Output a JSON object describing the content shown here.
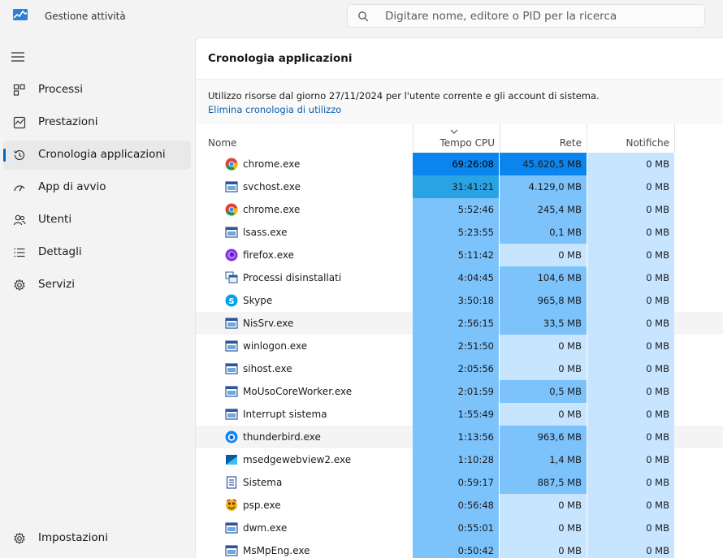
{
  "app": {
    "title": "Gestione attività"
  },
  "search": {
    "placeholder": "Digitare nome, editore o PID per la ricerca"
  },
  "nav": {
    "items": [
      {
        "label": "Processi",
        "icon": "processes-grid-icon"
      },
      {
        "label": "Prestazioni",
        "icon": "performance-chart-icon"
      },
      {
        "label": "Cronologia applicazioni",
        "icon": "history-clock-icon",
        "active": true
      },
      {
        "label": "App di avvio",
        "icon": "startup-gauge-icon"
      },
      {
        "label": "Utenti",
        "icon": "users-icon"
      },
      {
        "label": "Dettagli",
        "icon": "details-list-icon"
      },
      {
        "label": "Servizi",
        "icon": "services-gear-icon"
      }
    ],
    "settings_label": "Impostazioni"
  },
  "page": {
    "title": "Cronologia applicazioni",
    "description": "Utilizzo risorse dal giorno 27/11/2024 per l'utente corrente e gli account di sistema.",
    "delete_link": "Elimina cronologia di utilizzo"
  },
  "table": {
    "columns": {
      "name": "Nome",
      "cpu": "Tempo CPU",
      "net": "Rete",
      "notif": "Notifiche"
    },
    "sorted_by": "cpu",
    "heat_colors": {
      "very_high": "#0a85ed",
      "high": "#2aa3e4",
      "medium": "#7cc2fb",
      "medium_low": "#99d0ff",
      "low": "#c7e5ff"
    },
    "rows": [
      {
        "name": "chrome.exe",
        "icon": "chrome-icon",
        "cpu": "69:26:08",
        "net": "45.620,5 MB",
        "notif": "0 MB",
        "cpu_heat": "very_high",
        "net_heat": "very_high"
      },
      {
        "name": "svchost.exe",
        "icon": "system-app-icon",
        "cpu": "31:41:21",
        "net": "4.129,0 MB",
        "notif": "0 MB",
        "cpu_heat": "high",
        "net_heat": "medium"
      },
      {
        "name": "chrome.exe",
        "icon": "chrome-icon",
        "cpu": "5:52:46",
        "net": "245,4 MB",
        "notif": "0 MB",
        "cpu_heat": "medium",
        "net_heat": "medium"
      },
      {
        "name": "lsass.exe",
        "icon": "system-app-icon",
        "cpu": "5:23:55",
        "net": "0,1 MB",
        "notif": "0 MB",
        "cpu_heat": "medium",
        "net_heat": "medium"
      },
      {
        "name": "firefox.exe",
        "icon": "firefox-icon",
        "cpu": "5:11:42",
        "net": "0 MB",
        "notif": "0 MB",
        "cpu_heat": "medium",
        "net_heat": "low"
      },
      {
        "name": "Processi disinstallati",
        "icon": "uninstalled-processes-icon",
        "cpu": "4:04:45",
        "net": "104,6 MB",
        "notif": "0 MB",
        "cpu_heat": "medium",
        "net_heat": "medium"
      },
      {
        "name": "Skype",
        "icon": "skype-icon",
        "cpu": "3:50:18",
        "net": "965,8 MB",
        "notif": "0 MB",
        "cpu_heat": "medium",
        "net_heat": "medium"
      },
      {
        "name": "NisSrv.exe",
        "icon": "system-app-icon",
        "cpu": "2:56:15",
        "net": "33,5 MB",
        "notif": "0 MB",
        "cpu_heat": "medium",
        "net_heat": "medium",
        "highlighted": true
      },
      {
        "name": "winlogon.exe",
        "icon": "system-app-icon",
        "cpu": "2:51:50",
        "net": "0 MB",
        "notif": "0 MB",
        "cpu_heat": "medium",
        "net_heat": "low"
      },
      {
        "name": "sihost.exe",
        "icon": "system-app-icon",
        "cpu": "2:05:56",
        "net": "0 MB",
        "notif": "0 MB",
        "cpu_heat": "medium",
        "net_heat": "low"
      },
      {
        "name": "MoUsoCoreWorker.exe",
        "icon": "system-app-icon",
        "cpu": "2:01:59",
        "net": "0,5 MB",
        "notif": "0 MB",
        "cpu_heat": "medium",
        "net_heat": "medium"
      },
      {
        "name": "Interrupt sistema",
        "icon": "system-app-icon",
        "cpu": "1:55:49",
        "net": "0 MB",
        "notif": "0 MB",
        "cpu_heat": "medium",
        "net_heat": "low"
      },
      {
        "name": "thunderbird.exe",
        "icon": "thunderbird-icon",
        "cpu": "1:13:56",
        "net": "963,6 MB",
        "notif": "0 MB",
        "cpu_heat": "medium",
        "net_heat": "medium",
        "highlighted": true
      },
      {
        "name": "msedgewebview2.exe",
        "icon": "edge-webview-icon",
        "cpu": "1:10:28",
        "net": "1,4 MB",
        "notif": "0 MB",
        "cpu_heat": "medium",
        "net_heat": "medium"
      },
      {
        "name": "Sistema",
        "icon": "system-doc-icon",
        "cpu": "0:59:17",
        "net": "887,5 MB",
        "notif": "0 MB",
        "cpu_heat": "medium",
        "net_heat": "medium"
      },
      {
        "name": "psp.exe",
        "icon": "psp-icon",
        "cpu": "0:56:48",
        "net": "0 MB",
        "notif": "0 MB",
        "cpu_heat": "medium",
        "net_heat": "low"
      },
      {
        "name": "dwm.exe",
        "icon": "system-app-icon",
        "cpu": "0:55:01",
        "net": "0 MB",
        "notif": "0 MB",
        "cpu_heat": "medium",
        "net_heat": "low"
      },
      {
        "name": "MsMpEng.exe",
        "icon": "system-app-icon",
        "cpu": "0:50:42",
        "net": "0 MB",
        "notif": "0 MB",
        "cpu_heat": "medium",
        "net_heat": "low"
      }
    ]
  }
}
